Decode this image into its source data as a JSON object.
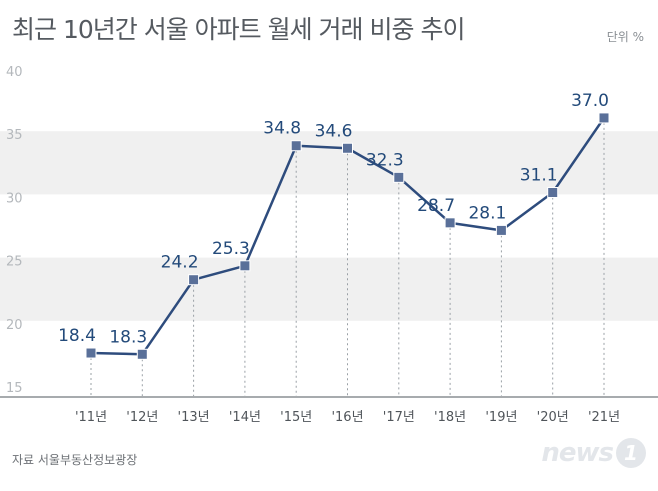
{
  "header": {
    "title": "최근 10년간 서울 아파트 월세 거래 비중 추이",
    "unit": "단위 %"
  },
  "footer": {
    "source": "자료 서울부동산정보광장",
    "logo_text": "news",
    "logo_mark": "1"
  },
  "colors": {
    "line": "#2e4c7d",
    "marker": "#5a7099",
    "label": "#234a7a",
    "band": "#f0f0f0",
    "axis": "#8a8f94"
  },
  "chart_data": {
    "type": "line",
    "categories": [
      "'11년",
      "'12년",
      "'13년",
      "'14년",
      "'15년",
      "'16년",
      "'17년",
      "'18년",
      "'19년",
      "'20년",
      "'21년"
    ],
    "series": [
      {
        "values": [
          18.4,
          18.3,
          24.2,
          25.3,
          34.8,
          34.6,
          32.3,
          28.7,
          28.1,
          31.1,
          37.0
        ]
      }
    ],
    "value_labels": [
      "18.4",
      "18.3",
      "24.2",
      "25.3",
      "34.8",
      "34.6",
      "32.3",
      "28.7",
      "28.1",
      "31.1",
      "37.0"
    ],
    "ylim": [
      15,
      40
    ],
    "yticks": [
      "15",
      "20",
      "25",
      "30",
      "35",
      "40"
    ],
    "title": "최근 10년간 서울 아파트 월세 거래 비중 추이",
    "xlabel": "",
    "ylabel": "",
    "grid": "alternating horizontal bands"
  }
}
